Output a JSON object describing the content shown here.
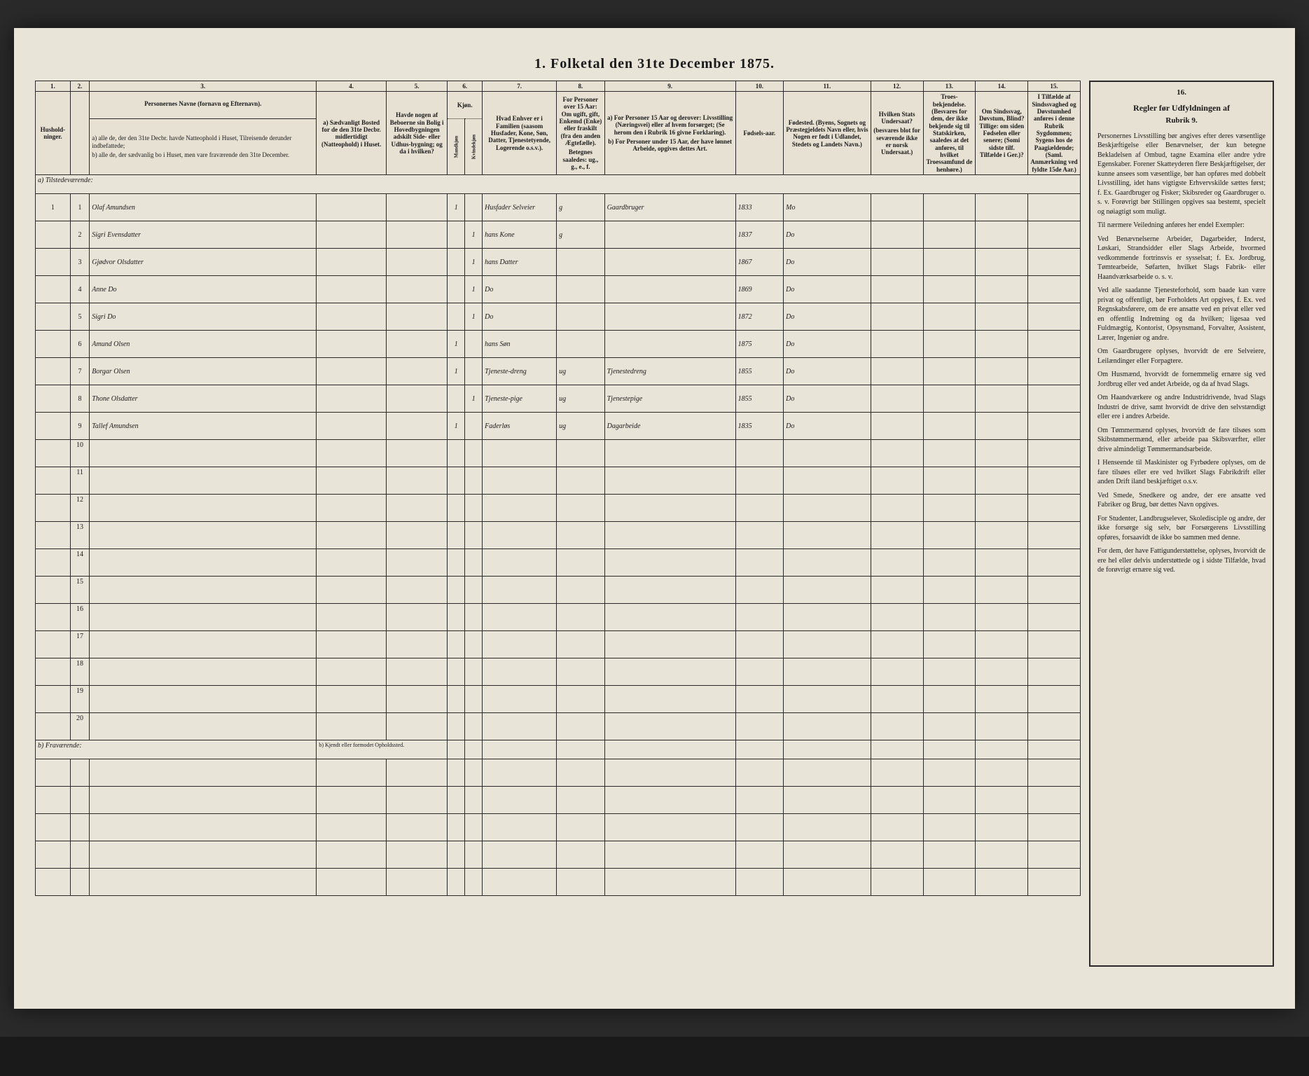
{
  "title": "1. Folketal den 31te December 1875.",
  "columns": {
    "nums": [
      "1.",
      "2.",
      "3.",
      "4.",
      "5.",
      "6.",
      "7.",
      "8.",
      "9.",
      "10.",
      "11.",
      "12.",
      "13.",
      "14.",
      "15.",
      "16."
    ],
    "h1": "Hushold-ninger.",
    "h2": "",
    "h3": "Personernes Navne (fornavn og Efternavn).",
    "h3a": "a) alle de, der den 31te Decbr. havde Natteophold i Huset, Tilreisende derunder indbefattede;",
    "h3b": "b) alle de, der sædvanlig bo i Huset, men vare fraværende den 31te December.",
    "h4": "a) Sædvanligt Bosted for de den 31te Decbr. midlertidigt (Natteophold) i Huset.",
    "h5": "Havde nogen af Beboerne sin Bolig i Hovedbygningen adskilt Side- eller Udhus-bygning; og da i hvilken?",
    "h6": "Kjøn.",
    "h6a": "Mandkjøn",
    "h6b": "Kvindekjøn",
    "h7": "Hvad Enhver er i Familien (saasom Husfader, Kone, Søn, Datter, Tjenestetyende, Logerende o.s.v.).",
    "h8": "For Personer over 15 Aar: Om ugift, gift, Enkemd (Enke) eller fraskilt (fra den anden Ægtefælle).",
    "h8b": "Betegnes saaledes: ug., g., e., f.",
    "h9": "a) For Personer 15 Aar og derover: Livsstilling (Næringsvei) eller af hvem forsørget; (Se herom den i Rubrik 16 givne Forklaring).",
    "h9b": "b) For Personer under 15 Aar, der have lønnet Arbeide, opgives dettes Art.",
    "h10": "Fødsels-aar.",
    "h11": "Fødested. (Byens, Sognets og Præstegjeldets Navn eller, hvis Nogen er født i Udlandet, Stedets og Landets Navn.)",
    "h12": "Hvilken Stats Undersaat?",
    "h12b": "(besvares blot for seværende ikke er norsk Undersaat.)",
    "h13": "Troes-bekjendelse. (Besvares for dem, der ikke bekjende sig til Statskirken, saaledes at det anføres, til hvilket Troessamfund de henhøre.)",
    "h14": "Om Sindssvag, Døvstum, Blind? Tillige: om siden Fødselen eller senere; (Somi sidste tilf. Tilfælde i Ger.)?",
    "h15": "I Tilfælde af Sindssvaghed og Døvstumhed anføres i denne Rubrik Sygdommen; Sygens hos de Paagiældende; (Saml. Anmærkning ved fyldte 15de Aar.)",
    "h16_title": "Regler før Udfyldningen af",
    "h16_sub": "Rubrik 9."
  },
  "sections": {
    "a": "a) Tilstedeværende:",
    "b": "b) Fraværende:",
    "b_sub": "b) Kjendt eller formodet Opholdssted."
  },
  "rows": [
    {
      "n": "1",
      "name": "Olaf Amundsen",
      "m": "1",
      "k": "",
      "fam": "Husfader Selveier",
      "civ": "g",
      "occ": "Gaardbruger",
      "year": "1833",
      "place": "Mo"
    },
    {
      "n": "2",
      "name": "Sigri Evensdatter",
      "m": "",
      "k": "1",
      "fam": "hans Kone",
      "civ": "g",
      "occ": "",
      "year": "1837",
      "place": "Do"
    },
    {
      "n": "3",
      "name": "Gjødvor Olsdatter",
      "m": "",
      "k": "1",
      "fam": "hans Datter",
      "civ": "",
      "occ": "",
      "year": "1867",
      "place": "Do"
    },
    {
      "n": "4",
      "name": "Anne Do",
      "m": "",
      "k": "1",
      "fam": "Do",
      "civ": "",
      "occ": "",
      "year": "1869",
      "place": "Do"
    },
    {
      "n": "5",
      "name": "Sigri Do",
      "m": "",
      "k": "1",
      "fam": "Do",
      "civ": "",
      "occ": "",
      "year": "1872",
      "place": "Do"
    },
    {
      "n": "6",
      "name": "Amund Olsen",
      "m": "1",
      "k": "",
      "fam": "hans Søn",
      "civ": "",
      "occ": "",
      "year": "1875",
      "place": "Do"
    },
    {
      "n": "7",
      "name": "Borgar Olsen",
      "m": "1",
      "k": "",
      "fam": "Tjeneste-dreng",
      "civ": "ug",
      "occ": "Tjenestedreng",
      "year": "1855",
      "place": "Do"
    },
    {
      "n": "8",
      "name": "Thone Olsdatter",
      "m": "",
      "k": "1",
      "fam": "Tjeneste-pige",
      "civ": "ug",
      "occ": "Tjenestepige",
      "year": "1855",
      "place": "Do"
    },
    {
      "n": "9",
      "name": "Tallef Amundsen",
      "m": "1",
      "k": "",
      "fam": "Faderløs",
      "civ": "ug",
      "occ": "Dagarbeide",
      "year": "1835",
      "place": "Do"
    }
  ],
  "blank_nums": [
    "10",
    "11",
    "12",
    "13",
    "14",
    "15",
    "16",
    "17",
    "18",
    "19",
    "20"
  ],
  "sidebar": [
    "Personernes Livsstilling bør angives efter deres væsentlige Beskjæftigelse eller Benævnelser, der kun betegne Bekladelsen af Ombud, tagne Examina eller andre ydre Egenskaber. Forener Skatteyderen flere Beskjæftigelser, der kunne ansees som væsentlige, bør han opføres med dobbelt Livsstilling, idet hans vigtigste Erhvervskilde sættes først; f. Ex. Gaardbruger og Fisker; Skibsreder og Gaardbruger o. s. v. Forøvrigt bør Stillingen opgives saa bestemt, specielt og nøiagtigt som muligt.",
    "Til nærmere Veiledning anføres her endel Exempler:",
    "Ved Benævnelserne Arbeider, Dagarbeider, Inderst, Løskari, Strandsidder eller Slags Arbeide, hvormed vedkommende fortrinsvis er sysselsat; f. Ex. Jordbrug, Tømtearbeide, Søfarten, hvilket Slags Fabrik- eller Haandværksarbeide o. s. v.",
    "Ved alle saadanne Tjenesteforhold, som baade kan være privat og offentligt, bør Forholdets Art opgives, f. Ex. ved Regnskabsførere, om de ere ansatte ved en privat eller ved en offentlig Indretning og da hvilken; ligesaa ved Fuldmægtig, Kontorist, Opsynsmand, Forvalter, Assistent, Lærer, Ingeniør og andre.",
    "Om Gaardbrugere oplyses, hvorvidt de ere Selveiere, Leilændinger eller Forpagtere.",
    "Om Husmænd, hvorvidt de fornemmelig ernære sig ved Jordbrug eller ved andet Arbeide, og da af hvad Slags.",
    "Om Haandværkere og andre Industridrivende, hvad Slags Industri de drive, samt hvorvidt de drive den selvstændigt eller ere i andres Arbeide.",
    "Om Tømmermænd oplyses, hvorvidt de fare tilsøes som Skibstømmermænd, eller arbeide paa Skibsværfter, eller drive almindeligt Tømmermandsarbeide.",
    "I Henseende til Maskinister og Fyrbødere oplyses, om de fare tilsøes eller ere ved hvilket Slags Fabrikdrift eller anden Drift iland beskjæftiget o.s.v.",
    "Ved Smede, Snedkere og andre, der ere ansatte ved Fabriker og Brug, bør dettes Navn opgives.",
    "For Studenter, Landbrugselever, Skoledisciple og andre, der ikke forsørge sig selv, bør Forsørgerens Livsstilling opføres, forsaavidt de ikke bo sammen med denne.",
    "For dem, der have Fattigunderstøttelse, oplyses, hvorvidt de ere hel eller delvis understøttede og i sidste Tilfælde, hvad de forøvrigt ernære sig ved."
  ],
  "colors": {
    "paper": "#e8e4d8",
    "ink": "#1a1a1a",
    "handwriting": "#2a2018",
    "border": "#2a2a2a",
    "background": "#1a1a1a"
  }
}
